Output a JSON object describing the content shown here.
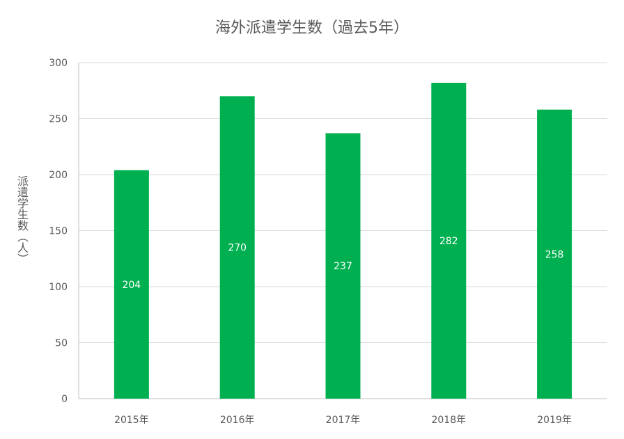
{
  "chart_data": {
    "type": "bar",
    "title": "海外派遣学生数（過去5年）",
    "ylabel": "派遣学生数（人）",
    "xlabel": "",
    "categories": [
      "2015年",
      "2016年",
      "2017年",
      "2018年",
      "2019年"
    ],
    "values": [
      204,
      270,
      237,
      282,
      258
    ],
    "ylim": [
      0,
      300
    ],
    "yticks": [
      0,
      50,
      100,
      150,
      200,
      250,
      300
    ],
    "grid": true,
    "bar_color": "#00B050",
    "data_labels": true
  }
}
